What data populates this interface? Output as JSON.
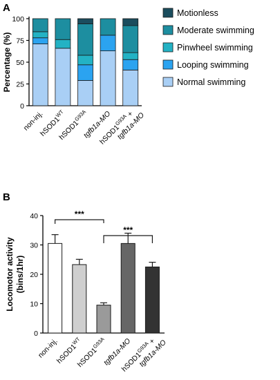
{
  "chart_data": [
    {
      "panel": "A",
      "type": "bar",
      "stacked": true,
      "categories": [
        {
          "main": "non-inj.",
          "sup": "",
          "post": "",
          "line2": ""
        },
        {
          "main": "hSOD1",
          "sup": "WT",
          "post": "",
          "line2": ""
        },
        {
          "main": "hSOD1",
          "sup": "G93A",
          "post": "",
          "line2": ""
        },
        {
          "main": "tgfb1a-MO",
          "sup": "",
          "post": "",
          "line2": ""
        },
        {
          "main": "hSOD1",
          "sup": "G93A",
          "post": " +",
          "line2": "tgfb1a-MO"
        }
      ],
      "series": [
        {
          "name": "Normal swimming",
          "color": "#a9cff5",
          "values": [
            71,
            66,
            29,
            63,
            41
          ]
        },
        {
          "name": "Looping swimming",
          "color": "#2ba3f0",
          "values": [
            7,
            0,
            18,
            18,
            12
          ]
        },
        {
          "name": "Pinwheel swimming",
          "color": "#23b2c4",
          "values": [
            7,
            10,
            11,
            0,
            8
          ]
        },
        {
          "name": "Moderate swimming",
          "color": "#1d8ea0",
          "values": [
            15,
            24,
            36,
            19,
            31
          ]
        },
        {
          "name": "Motionless",
          "color": "#1b4d5e",
          "values": [
            0,
            0,
            6,
            0,
            8
          ]
        }
      ],
      "legend_order": [
        "Motionless",
        "Moderate swimming",
        "Pinwheel swimming",
        "Looping swimming",
        "Normal swimming"
      ],
      "ylabel": "Percentage (%)",
      "ylim": [
        0,
        100
      ],
      "yticks": [
        0,
        25,
        50,
        75,
        100
      ],
      "legend": "right"
    },
    {
      "panel": "B",
      "type": "bar",
      "categories": [
        {
          "main": "non-inj.",
          "sup": "",
          "post": "",
          "line2": ""
        },
        {
          "main": "hSOD1",
          "sup": "WT",
          "post": "",
          "line2": ""
        },
        {
          "main": "hSOD1",
          "sup": "G93A",
          "post": "",
          "line2": ""
        },
        {
          "main": "tgfb1a-MO",
          "sup": "",
          "post": "",
          "line2": ""
        },
        {
          "main": "hSOD1",
          "sup": "G93A",
          "post": " +",
          "line2": "tgfb1a-MO"
        }
      ],
      "values": [
        30.5,
        23.3,
        9.5,
        30.5,
        22.5
      ],
      "errors": [
        3.0,
        1.8,
        0.8,
        3.5,
        1.6
      ],
      "colors": [
        "#ffffff",
        "#cfcfcf",
        "#9a9a9a",
        "#666666",
        "#333333"
      ],
      "ylabel": "Locomotor activity",
      "ylabel2": "(bins/1hr)",
      "ylim": [
        0,
        40
      ],
      "yticks": [
        0,
        10,
        20,
        30,
        40
      ],
      "annotations": [
        {
          "from": 0,
          "to": 2,
          "text": "***"
        },
        {
          "from": 2,
          "to": 4,
          "text": "***"
        }
      ]
    }
  ]
}
